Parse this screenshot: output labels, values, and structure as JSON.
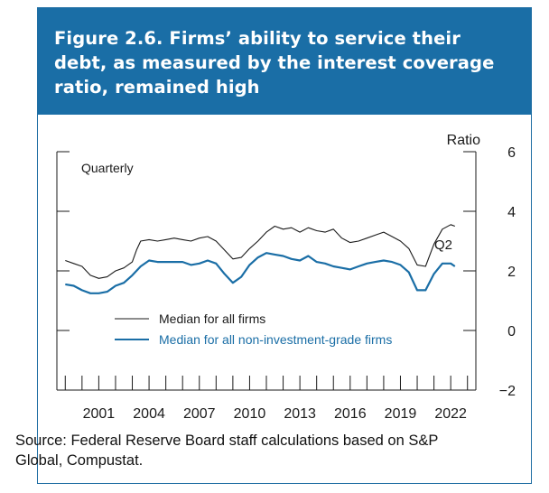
{
  "figure": {
    "title": "Figure 2.6. Firms’ ability to service their debt, as measured by the interest coverage ratio, remained high",
    "source": "Source: Federal Reserve Board staff calculations based on S&P Global, Compustat."
  },
  "colors": {
    "header_bg": "#1a6ea6",
    "series_all": "#1a1a1a",
    "series_nonig": "#1a6ea6"
  },
  "chart_data": {
    "type": "line",
    "title": "",
    "frequency_label": "Quarterly",
    "ylabel": "Ratio",
    "ylim": [
      -2,
      6
    ],
    "yticks": [
      -2,
      0,
      2,
      4,
      6
    ],
    "xlim": [
      1998.5,
      2023.5
    ],
    "xticks": [
      2001,
      2004,
      2007,
      2010,
      2013,
      2016,
      2019,
      2022
    ],
    "annotation": "Q2",
    "series": [
      {
        "name": "Median for all firms",
        "color": "#1a1a1a",
        "points": [
          [
            1999.0,
            2.35
          ],
          [
            1999.5,
            2.25
          ],
          [
            2000.0,
            2.15
          ],
          [
            2000.5,
            1.85
          ],
          [
            2001.0,
            1.75
          ],
          [
            2001.5,
            1.8
          ],
          [
            2002.0,
            2.0
          ],
          [
            2002.5,
            2.1
          ],
          [
            2003.0,
            2.3
          ],
          [
            2003.25,
            2.7
          ],
          [
            2003.5,
            3.0
          ],
          [
            2004.0,
            3.05
          ],
          [
            2004.5,
            3.0
          ],
          [
            2005.0,
            3.05
          ],
          [
            2005.5,
            3.1
          ],
          [
            2006.0,
            3.05
          ],
          [
            2006.5,
            3.0
          ],
          [
            2007.0,
            3.1
          ],
          [
            2007.5,
            3.15
          ],
          [
            2008.0,
            3.0
          ],
          [
            2008.5,
            2.7
          ],
          [
            2009.0,
            2.4
          ],
          [
            2009.5,
            2.45
          ],
          [
            2010.0,
            2.75
          ],
          [
            2010.5,
            3.0
          ],
          [
            2011.0,
            3.3
          ],
          [
            2011.5,
            3.5
          ],
          [
            2012.0,
            3.4
          ],
          [
            2012.5,
            3.45
          ],
          [
            2013.0,
            3.3
          ],
          [
            2013.5,
            3.45
          ],
          [
            2014.0,
            3.35
          ],
          [
            2014.5,
            3.3
          ],
          [
            2015.0,
            3.4
          ],
          [
            2015.5,
            3.1
          ],
          [
            2016.0,
            2.95
          ],
          [
            2016.5,
            3.0
          ],
          [
            2017.0,
            3.1
          ],
          [
            2017.5,
            3.2
          ],
          [
            2018.0,
            3.3
          ],
          [
            2018.5,
            3.15
          ],
          [
            2019.0,
            3.0
          ],
          [
            2019.5,
            2.75
          ],
          [
            2020.0,
            2.2
          ],
          [
            2020.5,
            2.15
          ],
          [
            2021.0,
            2.9
          ],
          [
            2021.5,
            3.4
          ],
          [
            2022.0,
            3.55
          ],
          [
            2022.25,
            3.5
          ]
        ]
      },
      {
        "name": "Median for all non-investment-grade firms",
        "color": "#1a6ea6",
        "points": [
          [
            1999.0,
            1.55
          ],
          [
            1999.5,
            1.5
          ],
          [
            2000.0,
            1.35
          ],
          [
            2000.5,
            1.25
          ],
          [
            2001.0,
            1.25
          ],
          [
            2001.5,
            1.3
          ],
          [
            2002.0,
            1.5
          ],
          [
            2002.5,
            1.6
          ],
          [
            2003.0,
            1.85
          ],
          [
            2003.5,
            2.15
          ],
          [
            2004.0,
            2.35
          ],
          [
            2004.5,
            2.3
          ],
          [
            2005.0,
            2.3
          ],
          [
            2005.5,
            2.3
          ],
          [
            2006.0,
            2.3
          ],
          [
            2006.5,
            2.2
          ],
          [
            2007.0,
            2.25
          ],
          [
            2007.5,
            2.35
          ],
          [
            2008.0,
            2.25
          ],
          [
            2008.5,
            1.9
          ],
          [
            2009.0,
            1.6
          ],
          [
            2009.5,
            1.8
          ],
          [
            2010.0,
            2.2
          ],
          [
            2010.5,
            2.45
          ],
          [
            2011.0,
            2.6
          ],
          [
            2011.5,
            2.55
          ],
          [
            2012.0,
            2.5
          ],
          [
            2012.5,
            2.4
          ],
          [
            2013.0,
            2.35
          ],
          [
            2013.5,
            2.5
          ],
          [
            2014.0,
            2.3
          ],
          [
            2014.5,
            2.25
          ],
          [
            2015.0,
            2.15
          ],
          [
            2015.5,
            2.1
          ],
          [
            2016.0,
            2.05
          ],
          [
            2016.5,
            2.15
          ],
          [
            2017.0,
            2.25
          ],
          [
            2017.5,
            2.3
          ],
          [
            2018.0,
            2.35
          ],
          [
            2018.5,
            2.3
          ],
          [
            2019.0,
            2.2
          ],
          [
            2019.5,
            1.95
          ],
          [
            2020.0,
            1.35
          ],
          [
            2020.5,
            1.35
          ],
          [
            2021.0,
            1.9
          ],
          [
            2021.5,
            2.25
          ],
          [
            2022.0,
            2.25
          ],
          [
            2022.25,
            2.15
          ]
        ]
      }
    ]
  }
}
